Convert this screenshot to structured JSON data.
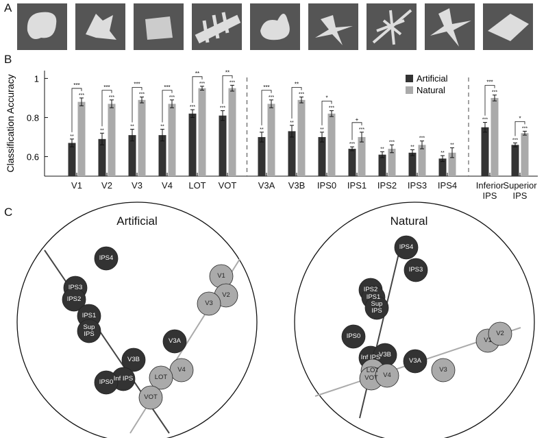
{
  "panel_labels": [
    "A",
    "B",
    "C"
  ],
  "chart_data": {
    "type": "bar",
    "y_label": "Classification Accuracy",
    "categories": [
      "V1",
      "V2",
      "V3",
      "V4",
      "LOT",
      "VOT",
      "V3A",
      "V3B",
      "IPS0",
      "IPS1",
      "IPS2",
      "IPS3",
      "IPS4",
      "Inferior IPS",
      "Superior IPS"
    ],
    "series": [
      {
        "name": "Artificial",
        "color": "#333333",
        "values": [
          0.67,
          0.69,
          0.71,
          0.71,
          0.82,
          0.81,
          0.7,
          0.73,
          0.7,
          0.64,
          0.61,
          0.62,
          0.59,
          0.75,
          0.66
        ],
        "errors": [
          0.02,
          0.03,
          0.03,
          0.03,
          0.02,
          0.025,
          0.025,
          0.03,
          0.025,
          0.01,
          0.015,
          0.015,
          0.015,
          0.025,
          0.01
        ],
        "stars": [
          "**",
          "**",
          "**",
          "**",
          "***",
          "***",
          "**",
          "**",
          "**",
          "***",
          "**",
          "**",
          "**",
          "***",
          "***"
        ]
      },
      {
        "name": "Natural",
        "color": "#aaaaaa",
        "values": [
          0.88,
          0.87,
          0.89,
          0.87,
          0.95,
          0.95,
          0.87,
          0.89,
          0.82,
          0.7,
          0.64,
          0.66,
          0.62,
          0.9,
          0.72
        ],
        "errors": [
          0.02,
          0.02,
          0.015,
          0.02,
          0.01,
          0.015,
          0.02,
          0.015,
          0.015,
          0.025,
          0.02,
          0.02,
          0.025,
          0.015,
          0.01
        ],
        "stars": [
          "***",
          "***",
          "***",
          "***",
          "***",
          "***",
          "***",
          "***",
          "***",
          "***",
          "***",
          "***",
          "**",
          "***",
          "***"
        ]
      }
    ],
    "significance": [
      "***",
      "***",
      "***",
      "***",
      "**",
      "**",
      "***",
      "**",
      "*",
      "+",
      null,
      null,
      null,
      "***",
      "*"
    ],
    "ylim": [
      0.5,
      1.04
    ],
    "yticks": [
      0.6,
      0.8,
      1
    ],
    "legend": "upper right"
  },
  "mds": [
    {
      "title": "Artificial",
      "nodes": [
        {
          "label": "IPS4",
          "color": "#333333"
        },
        {
          "label": "IPS3",
          "color": "#333333"
        },
        {
          "label": "IPS2",
          "color": "#333333"
        },
        {
          "label": "IPS1",
          "color": "#333333"
        },
        {
          "label": "Sup IPS",
          "color": "#333333"
        },
        {
          "label": "V3B",
          "color": "#333333"
        },
        {
          "label": "V3A",
          "color": "#333333"
        },
        {
          "label": "Inf IPS",
          "color": "#333333"
        },
        {
          "label": "IPS0",
          "color": "#333333"
        },
        {
          "label": "V1",
          "color": "#aaaaaa"
        },
        {
          "label": "V2",
          "color": "#aaaaaa"
        },
        {
          "label": "V3",
          "color": "#aaaaaa"
        },
        {
          "label": "V4",
          "color": "#aaaaaa"
        },
        {
          "label": "LOT",
          "color": "#aaaaaa"
        },
        {
          "label": "VOT",
          "color": "#aaaaaa"
        }
      ]
    },
    {
      "title": "Natural",
      "nodes": [
        {
          "label": "IPS4",
          "color": "#333333"
        },
        {
          "label": "IPS3",
          "color": "#333333"
        },
        {
          "label": "IPS2",
          "color": "#333333"
        },
        {
          "label": "IPS1",
          "color": "#333333"
        },
        {
          "label": "Sup IPS",
          "color": "#333333"
        },
        {
          "label": "IPS0",
          "color": "#333333"
        },
        {
          "label": "Inf IPS",
          "color": "#333333"
        },
        {
          "label": "V3B",
          "color": "#333333"
        },
        {
          "label": "V3A",
          "color": "#333333"
        },
        {
          "label": "LOT",
          "color": "#aaaaaa"
        },
        {
          "label": "VOT",
          "color": "#aaaaaa"
        },
        {
          "label": "V4",
          "color": "#aaaaaa"
        },
        {
          "label": "V3",
          "color": "#aaaaaa"
        },
        {
          "label": "V1",
          "color": "#aaaaaa"
        },
        {
          "label": "V2",
          "color": "#aaaaaa"
        }
      ]
    }
  ]
}
